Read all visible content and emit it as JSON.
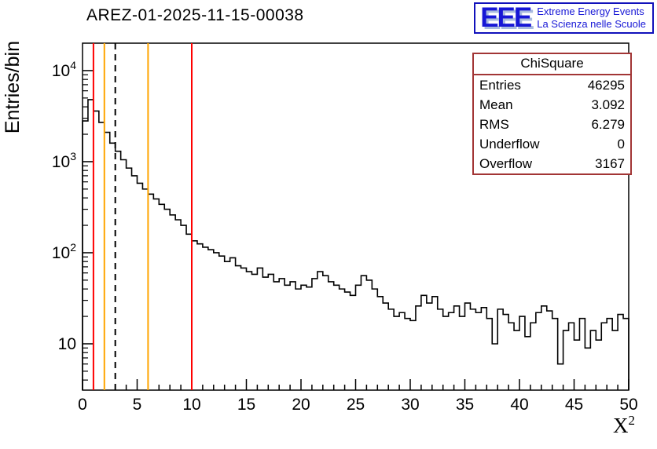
{
  "title": "AREZ-01-2025-11-15-00038",
  "logo": {
    "acronym": "EEE",
    "line1": "Extreme Energy Events",
    "line2": "La Scienza nelle Scuole",
    "blue": "#1717d6"
  },
  "stats": {
    "title": "ChiSquare",
    "rows": [
      {
        "label": "Entries",
        "value": "46295"
      },
      {
        "label": "Mean",
        "value": "3.092"
      },
      {
        "label": "RMS",
        "value": "6.279"
      },
      {
        "label": "Underflow",
        "value": "0"
      },
      {
        "label": "Overflow",
        "value": "3167"
      }
    ],
    "border_color": "#a23535"
  },
  "axes": {
    "x_label_base": "X",
    "x_label_exp": "2"
  },
  "chart_data": {
    "type": "bar",
    "style": "histogram-step",
    "title": "AREZ-01-2025-11-15-00038",
    "xlabel": "X^2",
    "ylabel": "Entries/bin",
    "xlim": [
      0,
      50
    ],
    "ylim": [
      3.1,
      20000
    ],
    "ylog": true,
    "grid": false,
    "line_color": "#000000",
    "bin_start": 0,
    "bin_width": 0.5,
    "x_ticks": [
      0,
      5,
      10,
      15,
      20,
      25,
      30,
      35,
      40,
      45,
      50
    ],
    "y_ticks": [
      10,
      100,
      1000,
      10000
    ],
    "values": [
      2800,
      4800,
      3600,
      2700,
      2100,
      1600,
      1300,
      1050,
      850,
      700,
      580,
      500,
      440,
      390,
      340,
      300,
      260,
      230,
      200,
      160,
      135,
      125,
      115,
      108,
      100,
      92,
      80,
      88,
      72,
      68,
      62,
      58,
      68,
      54,
      58,
      48,
      52,
      44,
      48,
      40,
      44,
      42,
      52,
      62,
      56,
      48,
      44,
      40,
      37,
      34,
      44,
      56,
      50,
      40,
      33,
      28,
      24,
      20,
      22,
      19,
      18,
      26,
      34,
      28,
      33,
      24,
      20,
      22,
      26,
      20,
      28,
      24,
      22,
      25,
      19,
      10,
      24,
      21,
      17,
      14,
      20,
      12,
      17,
      22,
      26,
      23,
      19,
      6,
      14,
      17,
      11,
      19,
      9,
      14,
      11,
      17,
      19,
      14,
      21,
      19
    ],
    "vlines": [
      {
        "x": 1,
        "color": "#ff0000",
        "dashed": false
      },
      {
        "x": 2,
        "color": "#ffa500",
        "dashed": false
      },
      {
        "x": 3,
        "color": "#000000",
        "dashed": true
      },
      {
        "x": 6,
        "color": "#ffa500",
        "dashed": false
      },
      {
        "x": 10,
        "color": "#ff0000",
        "dashed": false
      }
    ]
  }
}
